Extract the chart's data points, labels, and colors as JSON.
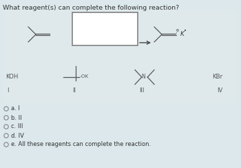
{
  "title": "What reagent(s) can complete the following reaction?",
  "bg_top": "#cfdde3",
  "bg_bottom": "#dce8ec",
  "panel_color": "#e8e8e8",
  "text_color": "#333333",
  "line_color": "#555555",
  "choices": [
    "a. I",
    "b. II",
    "c. III",
    "d. IV",
    "e. All these reagents can complete the reaction."
  ],
  "title_fontsize": 6.8,
  "label_fontsize": 6.0,
  "choice_fontsize": 6.0,
  "reagent_fontsize": 6.2
}
